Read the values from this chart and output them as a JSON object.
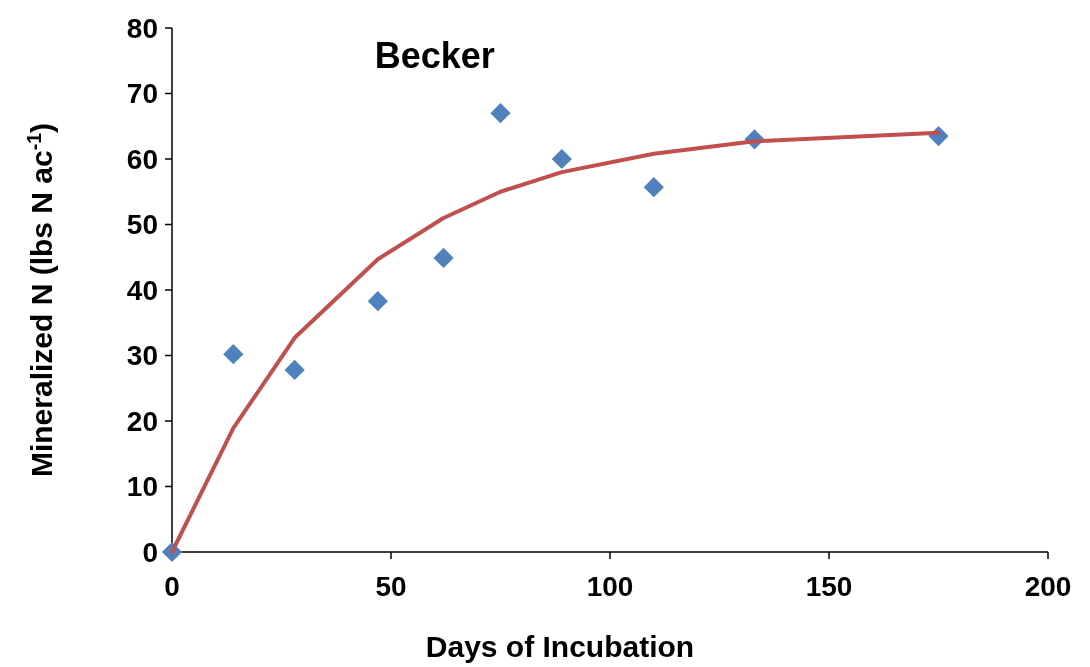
{
  "chart_data": {
    "type": "scatter",
    "title": "Becker",
    "xlabel": "Days of Incubation",
    "ylabel": "Mineralized N (lbs N ac$^{-1}$)",
    "xlim": [
      0,
      200
    ],
    "xticks": [
      0,
      50,
      100,
      150,
      200
    ],
    "ylim": [
      0,
      80
    ],
    "yticks": [
      0,
      10,
      20,
      30,
      40,
      50,
      60,
      70,
      80
    ],
    "grid": false,
    "series": [
      {
        "marker": "diamond",
        "color": "#4f81bd",
        "x": [
          0,
          14,
          28,
          47,
          62,
          75,
          89,
          110,
          133,
          175
        ],
        "values": [
          0,
          30.2,
          27.8,
          38.3,
          44.9,
          67,
          60,
          55.7,
          63,
          63.5
        ]
      },
      {
        "type": "line",
        "marker": "none",
        "line_style": "solid",
        "color": "#c0504d",
        "x": [
          0,
          14,
          28,
          47,
          62,
          75,
          89,
          110,
          133,
          175
        ],
        "values": [
          0,
          18.9,
          32.7,
          44.7,
          51,
          55,
          58,
          60.8,
          62.7,
          64
        ]
      }
    ]
  }
}
